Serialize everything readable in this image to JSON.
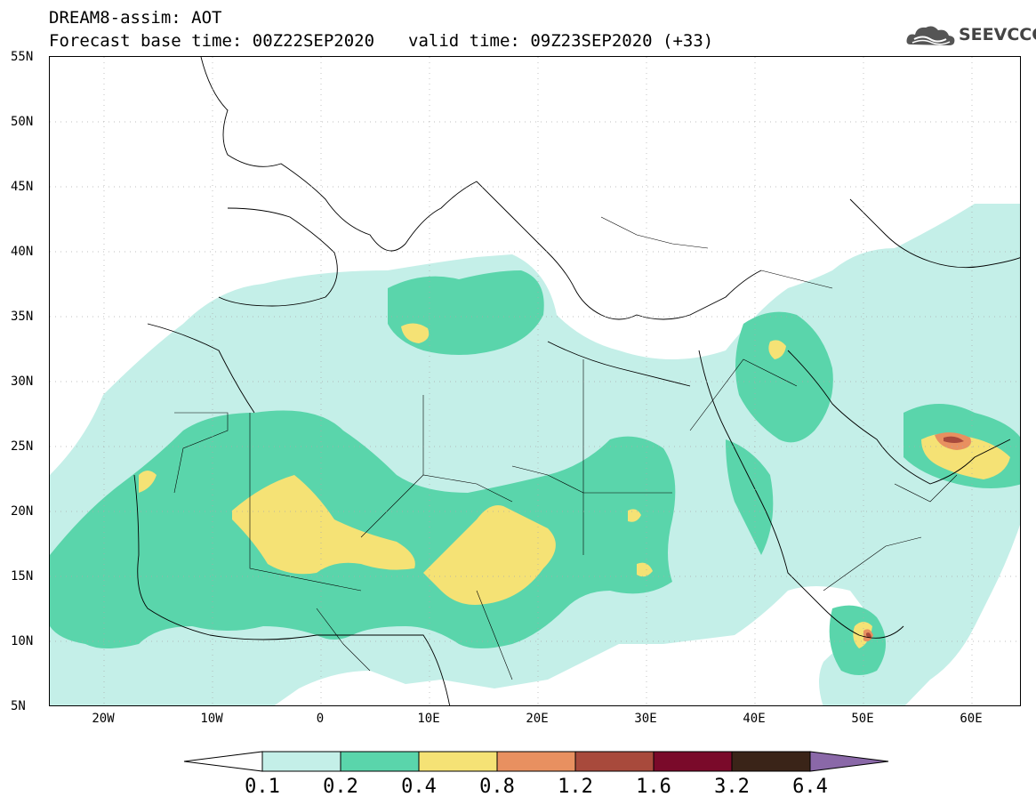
{
  "title": {
    "line1": "DREAM8-assim: AOT",
    "forecast_base": "Forecast base time: 00Z22SEP2020",
    "valid_time": "valid time: 09Z23SEP2020 (+33)"
  },
  "logo": {
    "text": "SEEVCCC",
    "icon": "cloud-icon"
  },
  "axes": {
    "lat_labels": [
      "55N",
      "50N",
      "45N",
      "40N",
      "35N",
      "30N",
      "25N",
      "20N",
      "15N",
      "10N",
      "5N"
    ],
    "lon_labels": [
      "20W",
      "10W",
      "0",
      "10E",
      "20E",
      "30E",
      "40E",
      "50E",
      "60E"
    ]
  },
  "colorbar": {
    "labels": [
      "0.1",
      "0.2",
      "0.4",
      "0.8",
      "1.2",
      "1.6",
      "3.2",
      "6.4"
    ],
    "colors": [
      "#ffffff",
      "#c4efe8",
      "#5ad5ab",
      "#f5e275",
      "#e89060",
      "#a84a3c",
      "#7a0a2a",
      "#3a2418",
      "#8a68a8"
    ]
  },
  "colors": {
    "aot_0_1": "#c4efe8",
    "aot_0_2": "#5ad5ab",
    "aot_0_4": "#f5e275",
    "aot_0_8": "#e89060",
    "aot_1_2": "#a84a3c"
  }
}
